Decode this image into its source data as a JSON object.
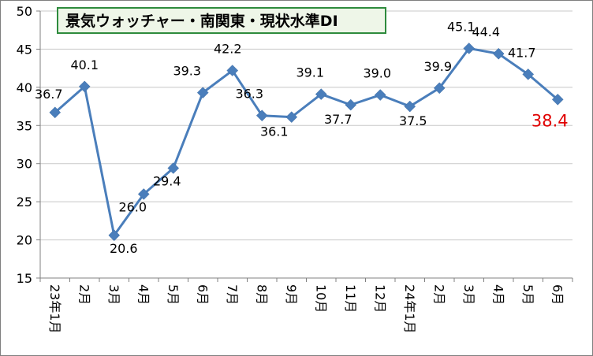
{
  "chart_data": {
    "type": "line",
    "title": "景気ウォッチャー・南関東・現状水準DI",
    "categories": [
      "23年1月",
      "2月",
      "3月",
      "4月",
      "5月",
      "6月",
      "7月",
      "8月",
      "9月",
      "10月",
      "11月",
      "12月",
      "24年1月",
      "2月",
      "3月",
      "4月",
      "5月",
      "6月"
    ],
    "series": [
      {
        "values": [
          36.7,
          40.1,
          20.6,
          26.0,
          29.4,
          39.3,
          42.2,
          36.3,
          36.1,
          39.1,
          37.7,
          39.0,
          37.5,
          39.9,
          45.1,
          44.4,
          41.7,
          38.4
        ],
        "labels": [
          "36.7",
          "40.1",
          "20.6",
          "26.0",
          "29.4",
          "39.3",
          "42.2",
          "36.3",
          "36.1",
          "39.1",
          "37.7",
          "39.0",
          "37.5",
          "39.9",
          "45.1",
          "44.4",
          "41.7",
          "38.4"
        ]
      }
    ],
    "ylim": [
      15,
      50
    ],
    "yticks": [
      "15",
      "20",
      "25",
      "30",
      "35",
      "40",
      "45",
      "50"
    ],
    "grid": true,
    "colors": {
      "line": "#4a7ebb",
      "marker": "#4a7ebb",
      "highlight_label": "#e00000",
      "title_border": "#2e8b3d",
      "title_bg": "#eef6e8",
      "grid": "#c8c8c8",
      "frame": "#7f7f7f"
    }
  }
}
